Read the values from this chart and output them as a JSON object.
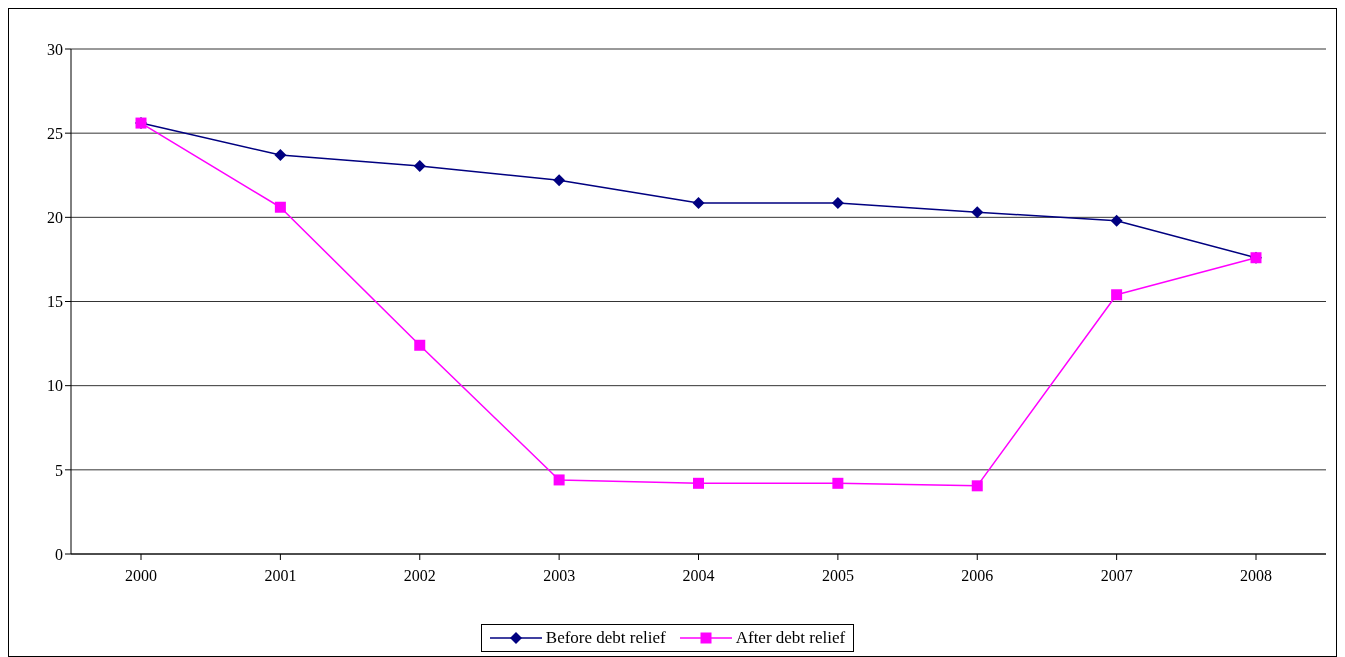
{
  "chart_data": {
    "type": "line",
    "categories": [
      "2000",
      "2001",
      "2002",
      "2003",
      "2004",
      "2005",
      "2006",
      "2007",
      "2008"
    ],
    "series": [
      {
        "name": "Before debt relief",
        "color": "#000080",
        "marker": "diamond",
        "values": [
          25.6,
          23.7,
          23.05,
          22.2,
          20.85,
          20.85,
          20.3,
          19.8,
          17.6
        ]
      },
      {
        "name": "After debt relief",
        "color": "#ff00ff",
        "marker": "square",
        "values": [
          25.6,
          20.6,
          12.4,
          4.4,
          4.2,
          4.2,
          4.05,
          15.4,
          17.6
        ]
      }
    ],
    "ylim": [
      0,
      30
    ],
    "yticks": [
      0,
      5,
      10,
      15,
      20,
      25,
      30
    ],
    "grid": "y",
    "legend": "bottom",
    "line_style": "solid"
  }
}
